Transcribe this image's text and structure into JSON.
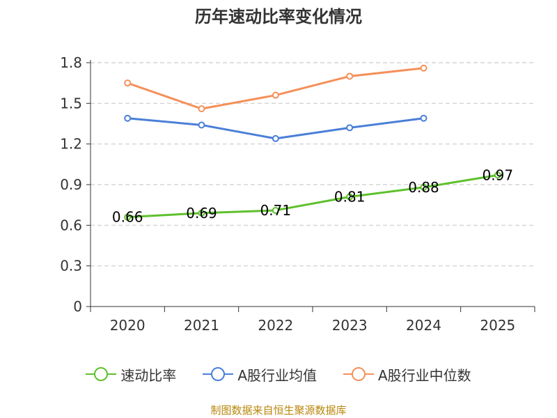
{
  "chart_data": {
    "type": "line",
    "title": "历年速动比率变化情况",
    "categories": [
      "2020",
      "2021",
      "2022",
      "2023",
      "2024",
      "2025"
    ],
    "yticks": [
      "0",
      "0.3",
      "0.6",
      "0.9",
      "1.2",
      "1.5",
      "1.8"
    ],
    "ylim": [
      0,
      1.8
    ],
    "series": [
      {
        "name": "速动比率",
        "color": "#5ec02c",
        "values": [
          0.66,
          0.69,
          0.71,
          0.81,
          0.88,
          0.97
        ],
        "labels": [
          "0.66",
          "0.69",
          "0.71",
          "0.81",
          "0.88",
          "0.97"
        ]
      },
      {
        "name": "A股行业均值",
        "color": "#4a7fd8",
        "values": [
          1.39,
          1.34,
          1.24,
          1.32,
          1.39,
          null
        ]
      },
      {
        "name": "A股行业中位数",
        "color": "#f59059",
        "values": [
          1.65,
          1.46,
          1.56,
          1.7,
          1.76,
          null
        ]
      }
    ],
    "grid": true,
    "legend_position": "bottom"
  },
  "source": "制图数据来自恒生聚源数据库"
}
